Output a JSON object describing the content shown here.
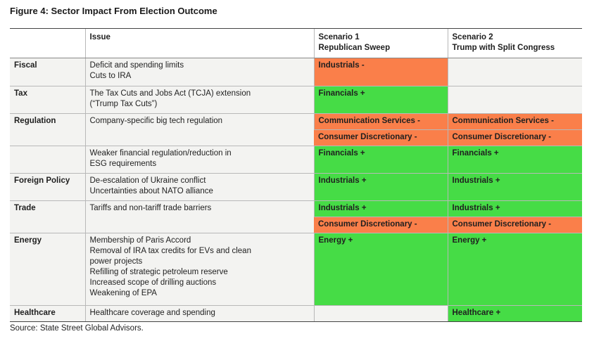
{
  "title": "Figure 4: Sector Impact From Election Outcome",
  "header": {
    "col0": "",
    "col1": "Issue",
    "col2_line1": "Scenario 1",
    "col2_line2": "Republican Sweep",
    "col3_line1": "Scenario 2",
    "col3_line2": "Trump with Split Congress"
  },
  "rows": [
    {
      "category": "Fiscal",
      "issue": [
        "Deficit and spending limits",
        "Cuts to IRA"
      ],
      "s1": "Industrials -",
      "s2": ""
    },
    {
      "category": "Tax",
      "issue": [
        "The Tax Cuts and Jobs Act (TCJA) extension",
        "(“Trump Tax Cuts”)"
      ],
      "s1": "Financials +",
      "s2": ""
    },
    {
      "category": "Regulation",
      "issue": [
        "Company-specific big tech regulation"
      ],
      "s1": "Communication Services -",
      "s2": "Communication Services -"
    },
    {
      "category": "",
      "issue": [],
      "s1": "Consumer Discretionary -",
      "s2": "Consumer Discretionary -"
    },
    {
      "category": "",
      "issue": [
        "Weaker financial regulation/reduction in",
        "ESG requirements"
      ],
      "s1": "Financials +",
      "s2": "Financials +"
    },
    {
      "category": "Foreign Policy",
      "issue": [
        "De-escalation of Ukraine conflict",
        "Uncertainties about NATO alliance"
      ],
      "s1": "Industrials +",
      "s2": "Industrials +"
    },
    {
      "category": "Trade",
      "issue": [
        "Tariffs and non-tariff trade barriers"
      ],
      "s1": "Industrials +",
      "s2": "Industrials +"
    },
    {
      "category": "",
      "issue": [],
      "s1": "Consumer Discretionary -",
      "s2": "Consumer Discretionary -"
    },
    {
      "category": "Energy",
      "issue": [
        "Membership of Paris Accord",
        "Removal of IRA tax credits for EVs and clean",
        "power projects",
        "Refilling of strategic petroleum reserve",
        "Increased scope of drilling auctions",
        "Weakening of EPA"
      ],
      "s1": "Energy +",
      "s2": "Energy +"
    },
    {
      "category": "Healthcare",
      "issue": [
        "Healthcare coverage and spending"
      ],
      "s1": "",
      "s2": "Healthcare +"
    }
  ],
  "source": "Source: State Street Global Advisors.",
  "colors": {
    "positive": "#46dc46",
    "negative": "#fa7f4a",
    "neutral": "#f3f3f1"
  }
}
